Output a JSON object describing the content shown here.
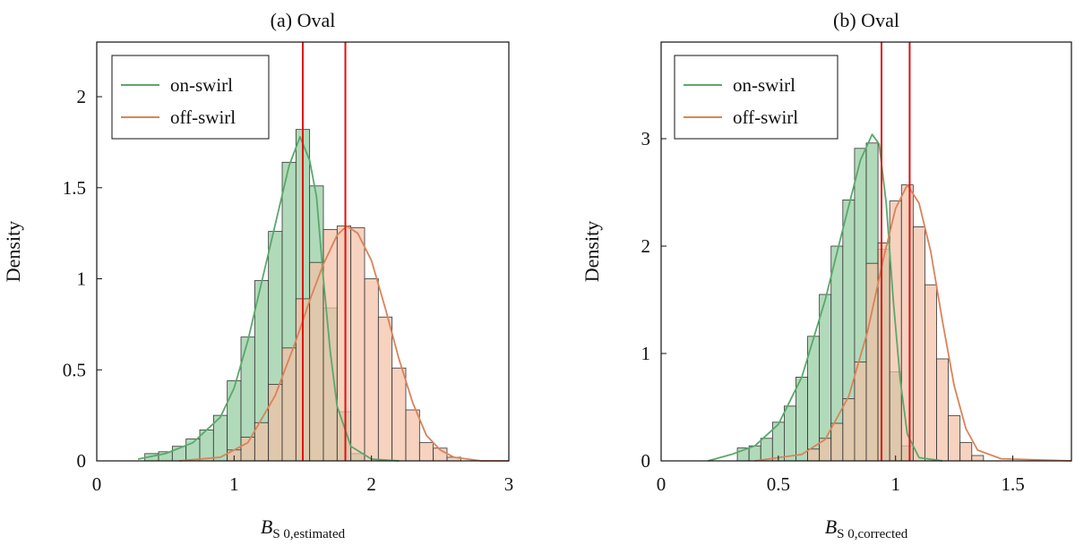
{
  "chart_data": [
    {
      "type": "bar",
      "title": "(a) Oval",
      "ylabel": "Density",
      "xlabel_main": "B",
      "xlabel_sub": "S 0,estimated",
      "xlim": [
        0,
        3
      ],
      "ylim": [
        0,
        2.3
      ],
      "xticks": [
        0,
        1,
        2,
        3
      ],
      "yticks": [
        0,
        0.5,
        1,
        1.5,
        2
      ],
      "ytick_labels": [
        "0",
        "0.5",
        "1",
        "1.5",
        "2"
      ],
      "bin_width": 0.1,
      "legend_position": "top-left",
      "vlines": [
        1.5,
        1.81
      ],
      "series": [
        {
          "name": "on-swirl",
          "color": "#5aa86a",
          "fill": "#a9d6b2",
          "bins": [
            {
              "x": 0.4,
              "y": 0.04
            },
            {
              "x": 0.5,
              "y": 0.05
            },
            {
              "x": 0.6,
              "y": 0.08
            },
            {
              "x": 0.7,
              "y": 0.12
            },
            {
              "x": 0.8,
              "y": 0.17
            },
            {
              "x": 0.9,
              "y": 0.25
            },
            {
              "x": 1.0,
              "y": 0.44
            },
            {
              "x": 1.1,
              "y": 0.68
            },
            {
              "x": 1.2,
              "y": 0.99
            },
            {
              "x": 1.3,
              "y": 1.26
            },
            {
              "x": 1.4,
              "y": 1.64
            },
            {
              "x": 1.5,
              "y": 1.82
            },
            {
              "x": 1.6,
              "y": 1.51
            },
            {
              "x": 1.7,
              "y": 0.84
            },
            {
              "x": 1.8,
              "y": 0.27
            },
            {
              "x": 1.9,
              "y": 0.04
            }
          ],
          "curve": [
            [
              0.3,
              0.01
            ],
            [
              0.5,
              0.04
            ],
            [
              0.7,
              0.1
            ],
            [
              0.9,
              0.24
            ],
            [
              1.0,
              0.4
            ],
            [
              1.1,
              0.66
            ],
            [
              1.2,
              0.98
            ],
            [
              1.3,
              1.3
            ],
            [
              1.4,
              1.62
            ],
            [
              1.48,
              1.78
            ],
            [
              1.55,
              1.65
            ],
            [
              1.6,
              1.45
            ],
            [
              1.65,
              1.0
            ],
            [
              1.7,
              0.6
            ],
            [
              1.75,
              0.3
            ],
            [
              1.85,
              0.08
            ],
            [
              2.0,
              0.01
            ],
            [
              2.2,
              0.0
            ]
          ]
        },
        {
          "name": "off-swirl",
          "color": "#d9835a",
          "fill": "#f2c1a6",
          "bins": [
            {
              "x": 1.0,
              "y": 0.06
            },
            {
              "x": 1.1,
              "y": 0.13
            },
            {
              "x": 1.2,
              "y": 0.21
            },
            {
              "x": 1.3,
              "y": 0.42
            },
            {
              "x": 1.4,
              "y": 0.62
            },
            {
              "x": 1.5,
              "y": 0.89
            },
            {
              "x": 1.6,
              "y": 1.09
            },
            {
              "x": 1.7,
              "y": 1.27
            },
            {
              "x": 1.8,
              "y": 1.29
            },
            {
              "x": 1.9,
              "y": 1.28
            },
            {
              "x": 2.0,
              "y": 1.0
            },
            {
              "x": 2.1,
              "y": 0.79
            },
            {
              "x": 2.2,
              "y": 0.51
            },
            {
              "x": 2.3,
              "y": 0.28
            },
            {
              "x": 2.4,
              "y": 0.1
            },
            {
              "x": 2.5,
              "y": 0.07
            },
            {
              "x": 2.6,
              "y": 0.02
            }
          ],
          "curve": [
            [
              0.6,
              0.0
            ],
            [
              0.9,
              0.02
            ],
            [
              1.1,
              0.1
            ],
            [
              1.3,
              0.36
            ],
            [
              1.45,
              0.66
            ],
            [
              1.55,
              0.88
            ],
            [
              1.65,
              1.08
            ],
            [
              1.75,
              1.24
            ],
            [
              1.82,
              1.29
            ],
            [
              1.9,
              1.25
            ],
            [
              2.0,
              1.1
            ],
            [
              2.1,
              0.84
            ],
            [
              2.2,
              0.56
            ],
            [
              2.3,
              0.32
            ],
            [
              2.4,
              0.14
            ],
            [
              2.5,
              0.06
            ],
            [
              2.6,
              0.02
            ],
            [
              2.8,
              0.0
            ],
            [
              3.0,
              0.0
            ]
          ]
        }
      ]
    },
    {
      "type": "bar",
      "title": "(b) Oval",
      "ylabel": "Density",
      "xlabel_main": "B",
      "xlabel_sub": "S 0,corrected",
      "xlim": [
        0,
        1.75
      ],
      "ylim": [
        0,
        3.9
      ],
      "xticks": [
        0,
        0.5,
        1,
        1.5
      ],
      "xtick_labels": [
        "0",
        "0.5",
        "1",
        "1.5"
      ],
      "yticks": [
        0,
        1,
        2,
        3
      ],
      "ytick_labels": [
        "0",
        "1",
        "2",
        "3"
      ],
      "bin_width": 0.05,
      "legend_position": "top-left",
      "vlines": [
        0.94,
        1.06
      ],
      "series": [
        {
          "name": "on-swirl",
          "color": "#5aa86a",
          "fill": "#a9d6b2",
          "bins": [
            {
              "x": 0.35,
              "y": 0.12
            },
            {
              "x": 0.4,
              "y": 0.14
            },
            {
              "x": 0.45,
              "y": 0.21
            },
            {
              "x": 0.5,
              "y": 0.36
            },
            {
              "x": 0.55,
              "y": 0.51
            },
            {
              "x": 0.6,
              "y": 0.78
            },
            {
              "x": 0.65,
              "y": 1.16
            },
            {
              "x": 0.7,
              "y": 1.55
            },
            {
              "x": 0.75,
              "y": 2.0
            },
            {
              "x": 0.8,
              "y": 2.43
            },
            {
              "x": 0.85,
              "y": 2.91
            },
            {
              "x": 0.9,
              "y": 2.96
            },
            {
              "x": 0.95,
              "y": 1.97
            },
            {
              "x": 1.0,
              "y": 0.83
            },
            {
              "x": 1.05,
              "y": 0.14
            }
          ],
          "curve": [
            [
              0.2,
              0.0
            ],
            [
              0.3,
              0.06
            ],
            [
              0.4,
              0.14
            ],
            [
              0.5,
              0.34
            ],
            [
              0.6,
              0.78
            ],
            [
              0.7,
              1.5
            ],
            [
              0.78,
              2.2
            ],
            [
              0.85,
              2.8
            ],
            [
              0.9,
              3.04
            ],
            [
              0.93,
              2.95
            ],
            [
              0.96,
              2.4
            ],
            [
              0.99,
              1.5
            ],
            [
              1.02,
              0.75
            ],
            [
              1.05,
              0.25
            ],
            [
              1.1,
              0.03
            ],
            [
              1.2,
              0.0
            ]
          ]
        },
        {
          "name": "off-swirl",
          "color": "#d9835a",
          "fill": "#f2c1a6",
          "bins": [
            {
              "x": 0.65,
              "y": 0.11
            },
            {
              "x": 0.7,
              "y": 0.21
            },
            {
              "x": 0.75,
              "y": 0.35
            },
            {
              "x": 0.8,
              "y": 0.58
            },
            {
              "x": 0.85,
              "y": 0.92
            },
            {
              "x": 0.9,
              "y": 1.84
            },
            {
              "x": 0.95,
              "y": 2.03
            },
            {
              "x": 1.0,
              "y": 2.42
            },
            {
              "x": 1.05,
              "y": 2.57
            },
            {
              "x": 1.1,
              "y": 2.18
            },
            {
              "x": 1.15,
              "y": 1.64
            },
            {
              "x": 1.2,
              "y": 0.95
            },
            {
              "x": 1.25,
              "y": 0.42
            },
            {
              "x": 1.3,
              "y": 0.17
            },
            {
              "x": 1.35,
              "y": 0.05
            }
          ],
          "curve": [
            [
              0.4,
              0.0
            ],
            [
              0.6,
              0.06
            ],
            [
              0.7,
              0.2
            ],
            [
              0.8,
              0.6
            ],
            [
              0.88,
              1.2
            ],
            [
              0.95,
              1.9
            ],
            [
              1.0,
              2.35
            ],
            [
              1.05,
              2.57
            ],
            [
              1.1,
              2.4
            ],
            [
              1.15,
              1.95
            ],
            [
              1.2,
              1.3
            ],
            [
              1.25,
              0.7
            ],
            [
              1.3,
              0.3
            ],
            [
              1.35,
              0.1
            ],
            [
              1.45,
              0.02
            ],
            [
              1.75,
              0.0
            ]
          ]
        }
      ]
    }
  ]
}
